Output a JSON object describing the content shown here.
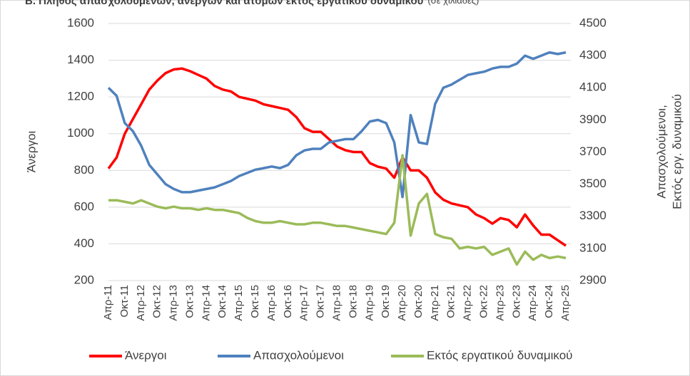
{
  "chart_data": {
    "type": "line",
    "title": "Β. Πλήθος απασχολούμενων, ανέργων και ατόμων εκτός εργατικού δυναμικού",
    "subtitle": "(σε χιλιάδες)",
    "y_label": "Άνεργοι",
    "y2_label": [
      "Απασχολούμενοι,",
      "Εκτός εργ. δυναμικού"
    ],
    "categories": [
      "Απρ-11",
      null,
      "Οκτ-11",
      null,
      "Απρ-12",
      null,
      "Οκτ-12",
      null,
      "Απρ-13",
      null,
      "Οκτ-13",
      null,
      "Απρ-14",
      null,
      "Οκτ-14",
      null,
      "Απρ-15",
      null,
      "Οκτ-15",
      null,
      "Απρ-16",
      null,
      "Οκτ-16",
      null,
      "Απρ-17",
      null,
      "Οκτ-17",
      null,
      "Απρ-18",
      null,
      "Οκτ-18",
      null,
      "Απρ-19",
      null,
      "Οκτ-19",
      null,
      "Απρ-20",
      null,
      "Οκτ-20",
      null,
      "Απρ-21",
      null,
      "Οκτ-21",
      null,
      "Απρ-22",
      null,
      "Οκτ-22",
      null,
      "Απρ-23",
      null,
      "Οκτ-23",
      null,
      "Απρ-24",
      null,
      "Οκτ-24",
      null,
      "Απρ-25"
    ],
    "series": [
      {
        "name": "Άνεργοι",
        "color": "#ff0000",
        "values": [
          810,
          870,
          1000,
          1080,
          1160,
          1240,
          1290,
          1330,
          1350,
          1355,
          1340,
          1320,
          1300,
          1260,
          1240,
          1230,
          1200,
          1190,
          1180,
          1160,
          1150,
          1140,
          1130,
          1090,
          1030,
          1010,
          1010,
          970,
          930,
          910,
          900,
          900,
          840,
          820,
          810,
          760,
          870,
          800,
          800,
          760,
          680,
          640,
          620,
          610,
          600,
          560,
          540,
          510,
          540,
          530,
          490,
          560,
          500,
          450,
          450,
          420,
          390
        ]
      },
      {
        "name": "Απασχολούμενοι",
        "color": "#4f81bd",
        "axis": "y2",
        "values": [
          4100,
          4050,
          3880,
          3830,
          3740,
          3620,
          3560,
          3500,
          3470,
          3450,
          3450,
          3460,
          3470,
          3480,
          3500,
          3520,
          3550,
          3570,
          3590,
          3600,
          3610,
          3600,
          3620,
          3680,
          3710,
          3720,
          3720,
          3760,
          3770,
          3780,
          3780,
          3830,
          3890,
          3900,
          3880,
          3760,
          3420,
          3930,
          3760,
          3750,
          4000,
          4100,
          4120,
          4150,
          4180,
          4190,
          4200,
          4220,
          4230,
          4230,
          4250,
          4300,
          4280,
          4300,
          4320,
          4310,
          4320
        ]
      },
      {
        "name": "Εκτός εργατικού δυναμικού",
        "color": "#9bbb59",
        "axis": "y2",
        "values": [
          3400,
          3400,
          3390,
          3380,
          3400,
          3380,
          3360,
          3350,
          3360,
          3350,
          3350,
          3340,
          3350,
          3340,
          3340,
          3330,
          3320,
          3290,
          3270,
          3260,
          3260,
          3270,
          3260,
          3250,
          3250,
          3260,
          3260,
          3250,
          3240,
          3240,
          3230,
          3220,
          3210,
          3200,
          3190,
          3260,
          3680,
          3180,
          3380,
          3440,
          3190,
          3170,
          3160,
          3100,
          3110,
          3100,
          3110,
          3060,
          3080,
          3100,
          3000,
          3080,
          3030,
          3060,
          3040,
          3050,
          3040
        ]
      }
    ],
    "ylim": [
      200,
      1600
    ],
    "yticks": [
      200,
      400,
      600,
      800,
      1000,
      1200,
      1400,
      1600
    ],
    "y2lim": [
      2900,
      4500
    ],
    "y2ticks": [
      2900,
      3100,
      3300,
      3500,
      3700,
      3900,
      4100,
      4300,
      4500
    ],
    "grid": true,
    "legend": "bottom"
  }
}
